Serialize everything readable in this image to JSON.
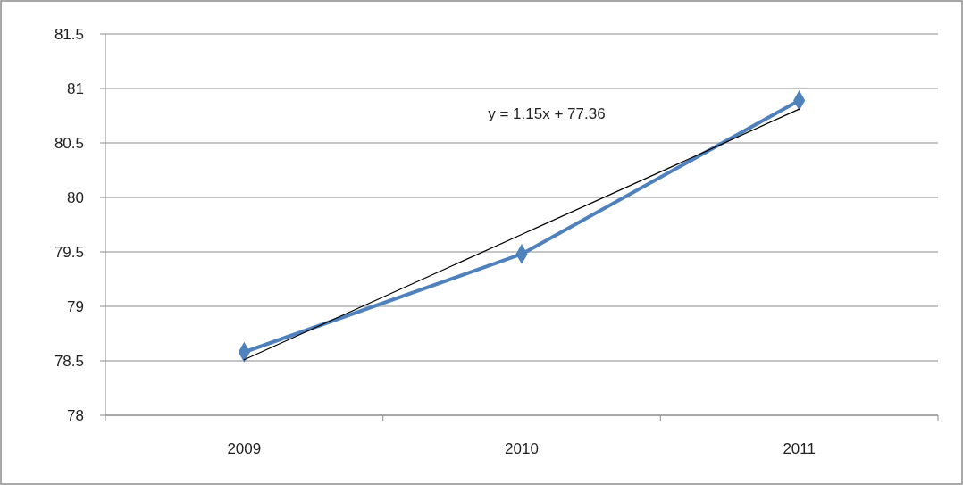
{
  "chart_data": {
    "type": "line",
    "categories": [
      "2009",
      "2010",
      "2011"
    ],
    "series": [
      {
        "color": "#4f81bd",
        "values": [
          78.58,
          79.48,
          80.89
        ],
        "marker": "diamond"
      },
      {
        "type": "line",
        "color": "#000000",
        "values": [
          78.51,
          79.66,
          80.81
        ],
        "marker": "none"
      }
    ],
    "ylim": [
      78,
      81.5
    ],
    "yticks": [
      78,
      78.5,
      79,
      79.5,
      80,
      80.5,
      81,
      81.5
    ],
    "grid": "y",
    "annotations": [
      "y = 1.15x + 77.36"
    ]
  }
}
